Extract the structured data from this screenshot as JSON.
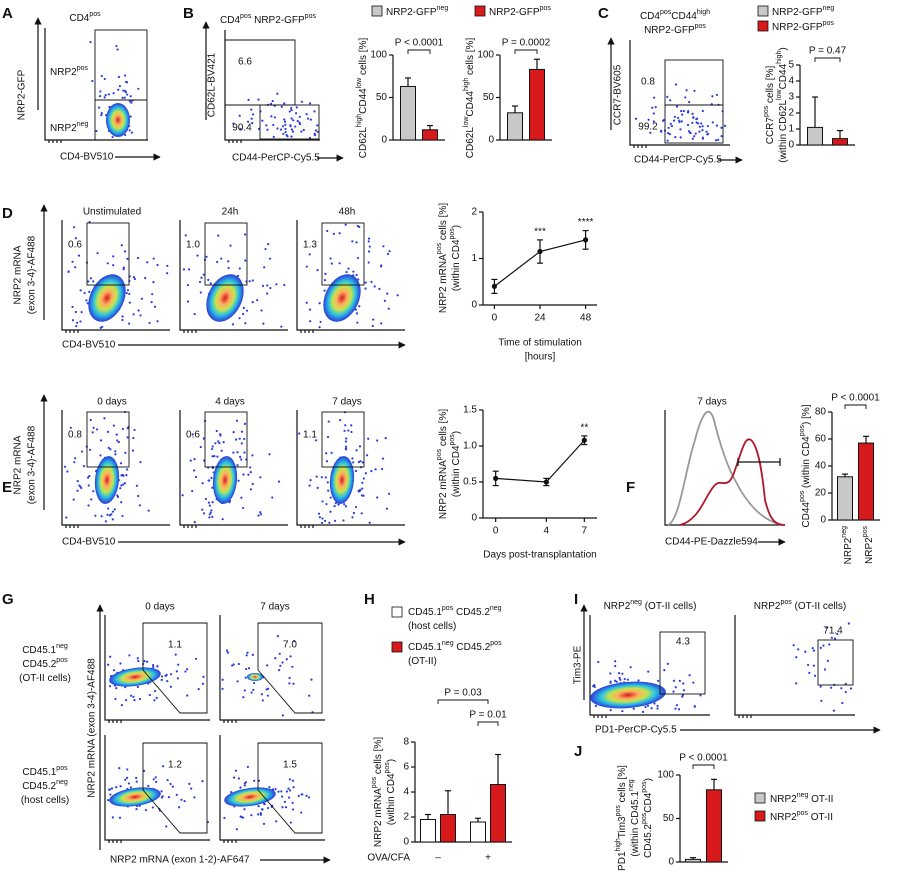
{
  "panels": {
    "A": {
      "label": "A",
      "title": [
        "CD4",
        "pos"
      ],
      "gates": [
        [
          "NRP2",
          "pos"
        ],
        [
          "NRP2",
          "neg"
        ]
      ],
      "ylabel": "NRP2-GFP",
      "xlabel": "CD4-BV510"
    },
    "B": {
      "label": "B",
      "title": [
        "CD4",
        "pos",
        " NRP2-GFP",
        "pos"
      ],
      "gates": [
        "6.6",
        "90.4"
      ],
      "ylabel": "CD62L-BV421",
      "xlabel": "CD44-PerCP-Cy5.5",
      "legend": [
        [
          "NRP2-GFP",
          "neg"
        ],
        [
          "NRP2-GFP",
          "pos"
        ]
      ]
    },
    "C": {
      "label": "C",
      "title": [
        [
          "CD4",
          "pos",
          "CD44",
          "high"
        ],
        [
          "NRP2-GFP",
          "pos"
        ]
      ],
      "gates": [
        "0.8",
        "99.2"
      ],
      "ylabel": "CCR7-BV605",
      "xlabel": "CD44-PerCP-Cy5.5",
      "legend": [
        [
          "NRP2-GFP",
          "neg"
        ],
        [
          "NRP2-GFP",
          "pos"
        ]
      ]
    },
    "D": {
      "label": "D",
      "columns": [
        "Unstimulated",
        "24h",
        "48h"
      ],
      "gates": [
        "0.6",
        "1.0",
        "1.3"
      ],
      "ylabel": [
        "NRP2 mRNA",
        "(exon 3-4)-AF488"
      ],
      "xlabel": "CD4-BV510"
    },
    "E": {
      "label": "E",
      "columns": [
        "0 days",
        "4 days",
        "7 days"
      ],
      "gates": [
        "0.8",
        "0.6",
        "1.1"
      ],
      "ylabel": [
        "NRP2 mRNA",
        "(exon 3-4)-AF488"
      ],
      "xlabel": "CD4-BV510"
    },
    "F": {
      "label": "F",
      "title": "7 days",
      "xlabel": "CD44-PE-Dazzle594"
    },
    "G": {
      "label": "G",
      "columns": [
        "0 days",
        "7 days"
      ],
      "rows": [
        [
          [
            "CD45.1",
            "neg"
          ],
          [
            "CD45.2",
            "pos"
          ],
          [
            "(OT-II cells)"
          ]
        ],
        [
          [
            "CD45.1",
            "pos"
          ],
          [
            "CD45.2",
            "neg"
          ],
          [
            "(host cells)"
          ]
        ]
      ],
      "gates": [
        "1.1",
        "7.0",
        "1.2",
        "1.5"
      ],
      "ylabel": "NRP2 mRNA (exon 3-4)-AF488",
      "xlabel": "NRP2 mRNA (exon 1-2)-AF647"
    },
    "H": {
      "label": "H"
    },
    "I": {
      "label": "I",
      "columns": [
        [
          "NRP2",
          "neg",
          " (OT-II cells)"
        ],
        [
          "NRP2",
          "pos",
          " (OT-II cells)"
        ]
      ],
      "gates": [
        "4.3",
        "71.4"
      ],
      "ylabel": "Tim3-PE",
      "xlabel": "PD1-PerCP-Cy5.5"
    },
    "J": {
      "label": "J"
    }
  },
  "chart_data": [
    {
      "type": "bar",
      "ylabel": [
        [
          "CD62L",
          "high",
          "CD44",
          "low",
          " cells [%]"
        ]
      ],
      "values": [
        63,
        12
      ],
      "errors": [
        10,
        5
      ],
      "colors": [
        "#c8c8c8",
        "#d7191c"
      ],
      "ylim": [
        0,
        100
      ],
      "yticks": [
        0,
        50,
        100
      ],
      "annotation": "P < 0.0001"
    },
    {
      "type": "bar",
      "ylabel": [
        [
          "CD62L",
          "low",
          "CD44",
          "high",
          " cells [%]"
        ]
      ],
      "values": [
        32,
        83
      ],
      "errors": [
        8,
        12
      ],
      "colors": [
        "#c8c8c8",
        "#d7191c"
      ],
      "ylim": [
        0,
        100
      ],
      "yticks": [
        0,
        50,
        100
      ],
      "annotation": "P = 0.0002"
    },
    {
      "type": "bar",
      "ylabel": [
        [
          "CCR7",
          "pos",
          " cells [%]"
        ],
        [
          "(within CD62L",
          "low",
          "CD44",
          "high",
          ")"
        ]
      ],
      "values": [
        1.1,
        0.4
      ],
      "errors": [
        1.9,
        0.5
      ],
      "colors": [
        "#c8c8c8",
        "#d7191c"
      ],
      "ylim": [
        0,
        5
      ],
      "yticks": [
        0,
        1,
        2,
        3,
        4,
        5
      ],
      "annotation": "P = 0.47"
    },
    {
      "type": "line",
      "ylabel": [
        [
          "NRP2 mRNA",
          "pos",
          " cells [%]"
        ],
        [
          "(within CD4",
          "pos",
          ")"
        ]
      ],
      "xlabel": [
        "Time of stimulation",
        "[hours]"
      ],
      "x": [
        0,
        24,
        48
      ],
      "values": [
        0.4,
        1.15,
        1.4
      ],
      "errors": [
        0.15,
        0.25,
        0.2
      ],
      "annotations": [
        null,
        "***",
        "****"
      ],
      "xlim": [
        -6,
        54
      ],
      "xticks": [
        0,
        24,
        48
      ],
      "ylim": [
        0,
        2
      ],
      "yticks": [
        0,
        1,
        2
      ]
    },
    {
      "type": "line",
      "ylabel": [
        [
          "NRP2 mRNA",
          "pos",
          " cells [%]"
        ],
        [
          "(within CD4",
          "pos",
          ")"
        ]
      ],
      "xlabel": [
        "Days post-transplantation"
      ],
      "x": [
        0,
        4,
        7
      ],
      "values": [
        0.55,
        0.5,
        1.08
      ],
      "errors": [
        0.1,
        0.05,
        0.06
      ],
      "annotations": [
        null,
        null,
        "**"
      ],
      "xlim": [
        -1,
        8
      ],
      "xticks": [
        0,
        4,
        7
      ],
      "ylim": [
        0,
        1.5
      ],
      "yticks": [
        0,
        0.5,
        {
          "value": 1,
          "label": "1.0"
        },
        1.5
      ]
    },
    {
      "type": "bar",
      "ylabel": [
        [
          "CD44",
          "pos",
          " (within CD4",
          "pos",
          ") [%]"
        ]
      ],
      "categories": [
        [
          "NRP2",
          "neg"
        ],
        [
          "NRP2",
          "pos"
        ]
      ],
      "values": [
        32,
        57
      ],
      "errors": [
        2,
        5
      ],
      "colors": [
        "#c8c8c8",
        "#d7191c"
      ],
      "ylim": [
        0,
        80
      ],
      "yticks": [
        0,
        20,
        40,
        60,
        80
      ],
      "annotation": "P < 0.0001"
    },
    {
      "type": "grouped-bar",
      "ylabel": [
        [
          "NRP2 mRNA",
          "pos",
          " cells [%]"
        ],
        [
          "(within CD4",
          "pos",
          ")"
        ]
      ],
      "xlabel": "OVA/CFA",
      "categories": [
        "–",
        "+"
      ],
      "series": [
        {
          "name": [
            [
              "CD45.1",
              "pos",
              " CD45.2",
              "neg"
            ],
            [
              "(host cells)"
            ]
          ],
          "color": "#ffffff",
          "values": [
            1.8,
            1.6
          ],
          "errors": [
            0.4,
            0.3
          ]
        },
        {
          "name": [
            [
              "CD45.1",
              "neg",
              " CD45.2",
              "pos"
            ],
            [
              "(OT-II)"
            ]
          ],
          "color": "#d7191c",
          "values": [
            2.2,
            4.6
          ],
          "errors": [
            1.9,
            2.4
          ]
        }
      ],
      "annotations": [
        "P = 0.03",
        "P = 0.01"
      ],
      "ylim": [
        0,
        8
      ],
      "yticks": [
        0,
        2,
        4,
        6,
        8
      ]
    },
    {
      "type": "bar",
      "ylabel": [
        [
          "PD1",
          "high",
          "Tim3",
          "pos",
          " cells [%]"
        ],
        [
          "(within CD45.1",
          "neg"
        ],
        [
          "CD45.2",
          "pos",
          "CD4",
          "pos",
          ")"
        ]
      ],
      "legend": [
        [
          "NRP2",
          "neg",
          " OT-II"
        ],
        [
          "NRP2",
          "pos",
          " OT-II"
        ]
      ],
      "values": [
        3,
        83
      ],
      "errors": [
        2,
        12
      ],
      "colors": [
        "#c8c8c8",
        "#d7191c"
      ],
      "ylim": [
        0,
        100
      ],
      "yticks": [
        0,
        50,
        100
      ],
      "annotation": "P < 0.0001"
    }
  ]
}
